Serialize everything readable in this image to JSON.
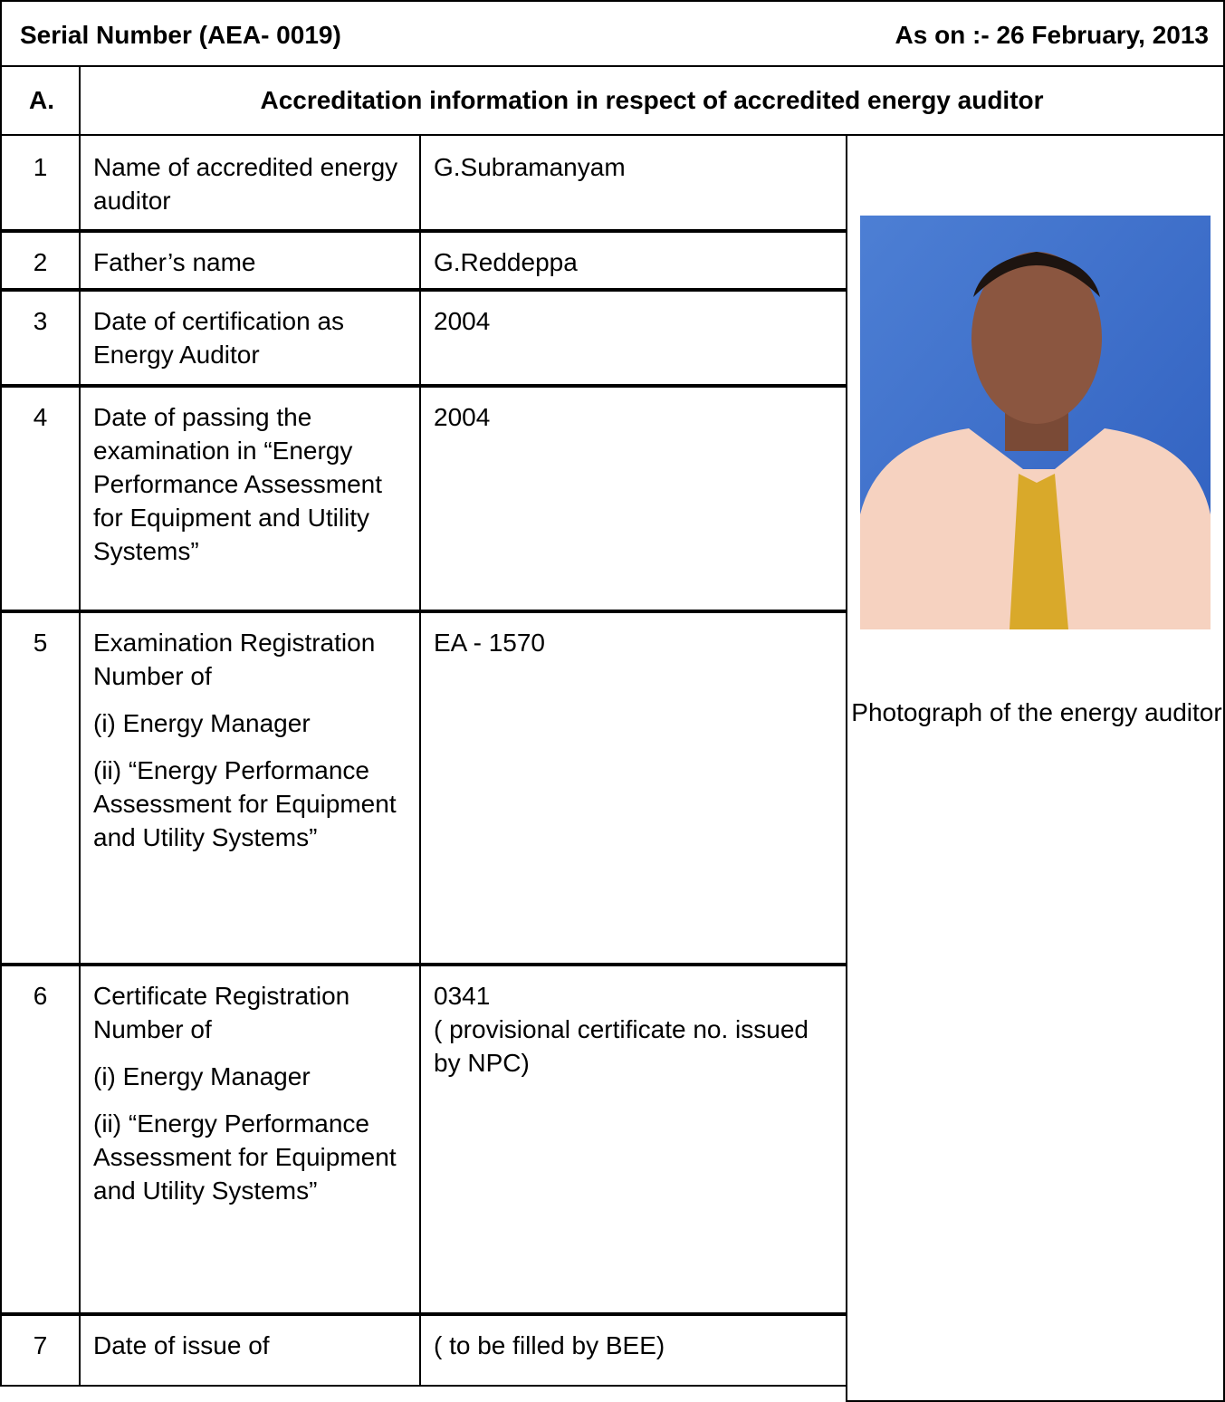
{
  "header": {
    "serial_number": "Serial Number    (AEA- 0019)",
    "as_on": "As on :- 26 February, 2013"
  },
  "section": {
    "label": "A.",
    "title": "Accreditation information in respect of accredited energy auditor"
  },
  "rows": [
    {
      "no": "1",
      "field": [
        "Name of  accredited energy auditor"
      ],
      "value": [
        "G.Subramanyam"
      ]
    },
    {
      "no": "2",
      "field": [
        "Father’s name"
      ],
      "value": [
        "G.Reddeppa"
      ]
    },
    {
      "no": "3",
      "field": [
        "Date of certification as Energy Auditor"
      ],
      "value": [
        "2004"
      ]
    },
    {
      "no": "4",
      "field": [
        "Date of passing the examination in “Energy Performance Assessment for Equipment and Utility Systems”"
      ],
      "value": [
        "2004"
      ]
    },
    {
      "no": "5",
      "field": [
        "Examination Registration Number of",
        "(i) Energy Manager",
        "(ii) “Energy Performance Assessment for Equipment and Utility Systems”"
      ],
      "value": [
        "EA - 1570"
      ]
    },
    {
      "no": "6",
      "field": [
        "Certificate Registration Number of",
        "(i) Energy Manager",
        "(ii) “Energy Performance Assessment for Equipment and Utility Systems”"
      ],
      "value": [
        "0341",
        " ( provisional certificate no. issued by NPC)"
      ]
    },
    {
      "no": "7",
      "field": [
        "Date of issue of"
      ],
      "value": [
        "( to be filled by BEE)"
      ]
    }
  ],
  "photo_caption": "Photograph of the energy auditor"
}
